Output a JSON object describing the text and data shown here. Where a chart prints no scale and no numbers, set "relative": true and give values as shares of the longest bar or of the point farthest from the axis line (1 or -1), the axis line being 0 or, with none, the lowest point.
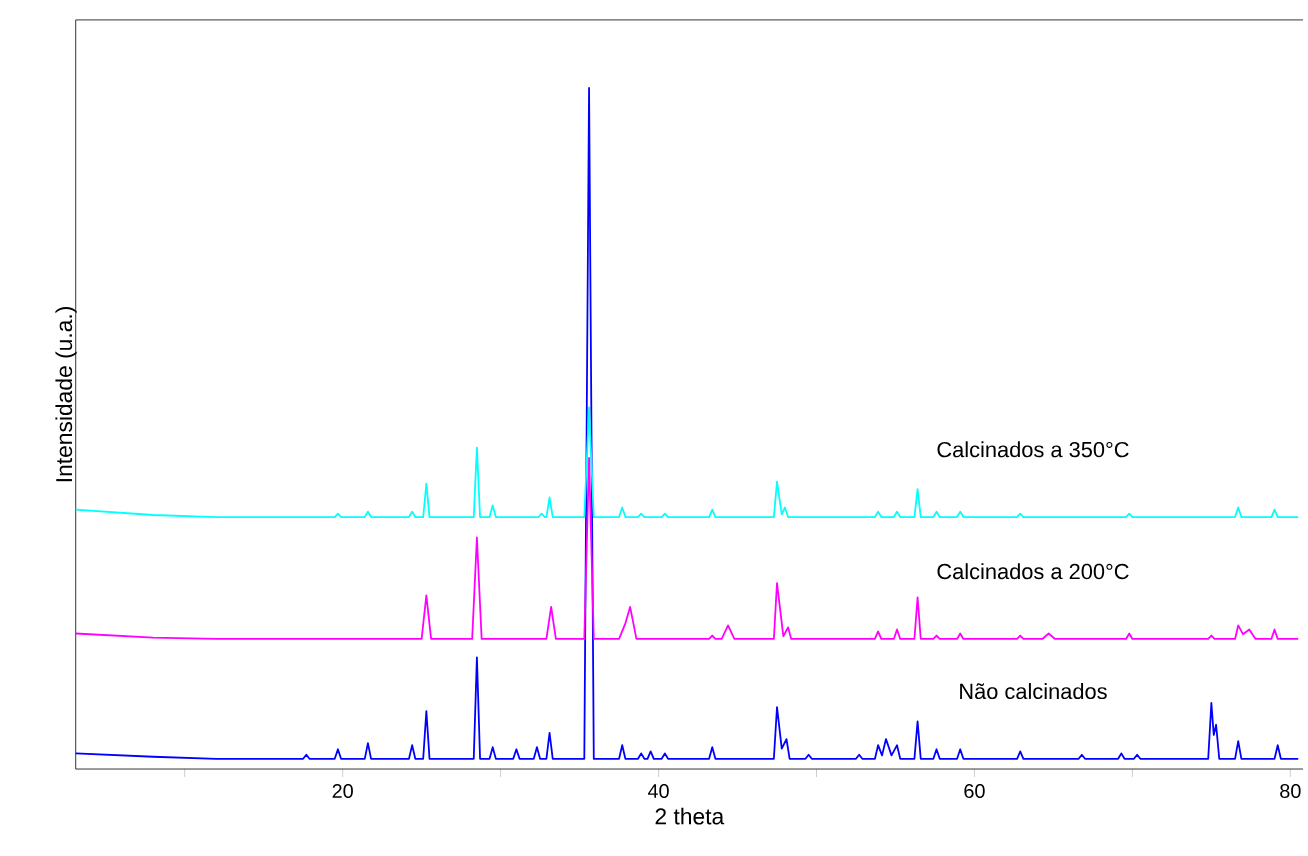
{
  "chart_data": {
    "type": "line",
    "relative": true,
    "xlabel": "2 theta",
    "ylabel": "Intensidade (u.a.)",
    "xlim": [
      3.1,
      80.8
    ],
    "xticks": [
      {
        "value": 10,
        "label": null
      },
      20,
      {
        "value": 30,
        "label": null
      },
      40,
      {
        "value": 50,
        "label": null
      },
      60,
      {
        "value": 70,
        "label": null
      },
      80
    ],
    "series": [
      {
        "name": "Não calcinados",
        "color": "#0000ff",
        "x": [
          3.1,
          8,
          12,
          17.5,
          17.7,
          17.9,
          19.5,
          19.7,
          19.9,
          21.4,
          21.6,
          21.8,
          24.2,
          24.4,
          24.6,
          25.1,
          25.3,
          25.5,
          28.3,
          28.5,
          28.7,
          29.3,
          29.5,
          29.7,
          30.8,
          31.0,
          31.2,
          32.1,
          32.3,
          32.5,
          32.9,
          33.1,
          33.3,
          35.3,
          35.6,
          35.9,
          37.5,
          37.7,
          37.9,
          38.7,
          38.9,
          39.1,
          39.3,
          39.5,
          39.7,
          40.2,
          40.4,
          40.6,
          43.2,
          43.4,
          43.6,
          47.3,
          47.5,
          47.8,
          48.1,
          48.3,
          49.3,
          49.5,
          49.7,
          52.5,
          52.7,
          52.9,
          53.7,
          53.9,
          54.15,
          54.4,
          54.75,
          55.1,
          55.3,
          56.2,
          56.4,
          56.6,
          57.4,
          57.6,
          57.8,
          58.9,
          59.1,
          59.3,
          62.7,
          62.9,
          63.1,
          66.6,
          66.8,
          67.0,
          69.1,
          69.3,
          69.5,
          70.1,
          70.3,
          70.5,
          74.8,
          75.0,
          75.15,
          75.3,
          75.5,
          76.5,
          76.7,
          76.9,
          79.0,
          79.2,
          79.4,
          80.5
        ],
        "values": [
          0.023,
          0.018,
          0.015,
          0.015,
          0.021,
          0.015,
          0.015,
          0.029,
          0.015,
          0.015,
          0.038,
          0.015,
          0.015,
          0.035,
          0.015,
          0.015,
          0.085,
          0.015,
          0.015,
          0.164,
          0.015,
          0.015,
          0.032,
          0.015,
          0.015,
          0.029,
          0.015,
          0.015,
          0.032,
          0.015,
          0.015,
          0.053,
          0.015,
          0.015,
          1,
          0.015,
          0.015,
          0.035,
          0.015,
          0.015,
          0.023,
          0.015,
          0.015,
          0.026,
          0.015,
          0.015,
          0.023,
          0.015,
          0.015,
          0.032,
          0.015,
          0.015,
          0.091,
          0.03,
          0.044,
          0.015,
          0.015,
          0.021,
          0.015,
          0.015,
          0.021,
          0.015,
          0.015,
          0.035,
          0.02,
          0.044,
          0.02,
          0.035,
          0.015,
          0.015,
          0.07,
          0.015,
          0.015,
          0.029,
          0.015,
          0.015,
          0.029,
          0.015,
          0.015,
          0.026,
          0.015,
          0.015,
          0.021,
          0.015,
          0.015,
          0.023,
          0.015,
          0.015,
          0.021,
          0.015,
          0.015,
          0.097,
          0.05,
          0.065,
          0.015,
          0.015,
          0.041,
          0.015,
          0.015,
          0.035,
          0.015,
          0.015
        ]
      },
      {
        "name": "Calcinados a 200°C",
        "color": "#ff00ff",
        "x": [
          3.1,
          8,
          12,
          25.0,
          25.3,
          25.6,
          28.2,
          28.5,
          28.8,
          32.9,
          33.2,
          33.5,
          35.3,
          35.6,
          35.9,
          37.5,
          37.9,
          38.2,
          38.6,
          43.2,
          43.4,
          43.6,
          44.0,
          44.4,
          44.8,
          47.3,
          47.5,
          47.9,
          48.2,
          48.4,
          53.7,
          53.9,
          54.1,
          54.9,
          55.1,
          55.3,
          56.2,
          56.4,
          56.6,
          57.4,
          57.6,
          57.8,
          58.9,
          59.1,
          59.3,
          62.7,
          62.9,
          63.1,
          64.3,
          64.7,
          65.1,
          69.6,
          69.8,
          70.0,
          74.8,
          75.0,
          75.2,
          76.5,
          76.7,
          77.0,
          77.4,
          77.8,
          78.8,
          79.0,
          79.2,
          80.5
        ],
        "values": [
          0.199,
          0.193,
          0.191,
          0.191,
          0.255,
          0.191,
          0.191,
          0.34,
          0.191,
          0.191,
          0.238,
          0.191,
          0.191,
          0.457,
          0.191,
          0.191,
          0.214,
          0.238,
          0.191,
          0.191,
          0.196,
          0.191,
          0.191,
          0.211,
          0.191,
          0.191,
          0.273,
          0.195,
          0.208,
          0.191,
          0.191,
          0.202,
          0.191,
          0.191,
          0.205,
          0.191,
          0.191,
          0.252,
          0.191,
          0.191,
          0.196,
          0.191,
          0.191,
          0.199,
          0.191,
          0.191,
          0.196,
          0.191,
          0.191,
          0.199,
          0.191,
          0.191,
          0.199,
          0.191,
          0.191,
          0.196,
          0.191,
          0.191,
          0.211,
          0.198,
          0.205,
          0.191,
          0.191,
          0.205,
          0.191,
          0.191
        ]
      },
      {
        "name": "Calcinados a 350°C",
        "color": "#00ffff",
        "x": [
          3.1,
          8,
          12,
          19.5,
          19.7,
          19.9,
          21.4,
          21.6,
          21.8,
          24.2,
          24.4,
          24.6,
          25.1,
          25.3,
          25.5,
          28.3,
          28.5,
          28.7,
          29.3,
          29.5,
          29.7,
          32.4,
          32.6,
          32.8,
          32.9,
          33.1,
          33.3,
          35.3,
          35.6,
          35.9,
          37.5,
          37.7,
          37.9,
          38.7,
          38.9,
          39.1,
          40.2,
          40.4,
          40.6,
          43.2,
          43.4,
          43.6,
          47.3,
          47.5,
          47.8,
          48.0,
          48.2,
          53.7,
          53.9,
          54.1,
          54.9,
          55.1,
          55.3,
          56.2,
          56.4,
          56.6,
          57.4,
          57.6,
          57.8,
          58.9,
          59.1,
          59.3,
          62.7,
          62.9,
          63.1,
          69.6,
          69.8,
          70.0,
          76.5,
          76.7,
          76.9,
          78.8,
          79.0,
          79.2,
          80.5
        ],
        "values": [
          0.381,
          0.373,
          0.37,
          0.37,
          0.375,
          0.37,
          0.37,
          0.378,
          0.37,
          0.37,
          0.378,
          0.37,
          0.37,
          0.419,
          0.37,
          0.37,
          0.472,
          0.37,
          0.37,
          0.387,
          0.37,
          0.37,
          0.375,
          0.37,
          0.37,
          0.399,
          0.37,
          0.37,
          0.531,
          0.37,
          0.37,
          0.384,
          0.37,
          0.37,
          0.375,
          0.37,
          0.37,
          0.375,
          0.37,
          0.37,
          0.381,
          0.37,
          0.37,
          0.422,
          0.374,
          0.384,
          0.37,
          0.37,
          0.378,
          0.37,
          0.37,
          0.378,
          0.37,
          0.37,
          0.411,
          0.37,
          0.37,
          0.378,
          0.37,
          0.37,
          0.378,
          0.37,
          0.37,
          0.375,
          0.37,
          0.37,
          0.375,
          0.37,
          0.37,
          0.384,
          0.37,
          0.37,
          0.381,
          0.37,
          0.37
        ]
      }
    ]
  }
}
